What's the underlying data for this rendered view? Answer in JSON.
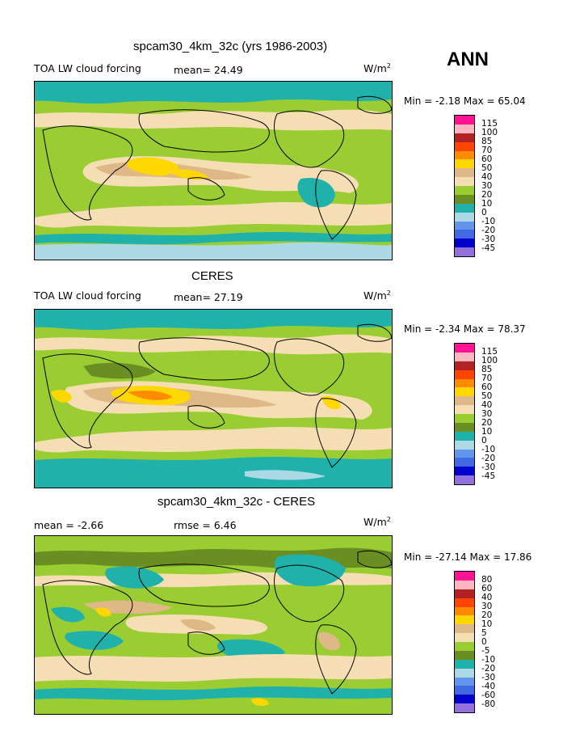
{
  "season": "ANN",
  "panels": [
    {
      "title": "spcam30_4km_32c (yrs 1986-2003)",
      "left_label": "TOA LW cloud forcing",
      "mid_label": "mean=  24.49",
      "units_base": "W/m",
      "units_exp": "2",
      "minmax": "Min =   -2.18  Max =   65.04",
      "legend_labels": [
        "115",
        "100",
        "85",
        "70",
        "60",
        "50",
        "40",
        "30",
        "20",
        "10",
        "0",
        "-10",
        "-20",
        "-30",
        "-45"
      ]
    },
    {
      "title": "CERES",
      "left_label": "TOA LW cloud forcing",
      "mid_label": "mean=  27.19",
      "units_base": "W/m",
      "units_exp": "2",
      "minmax": "Min =   -2.34  Max =   78.37",
      "legend_labels": [
        "115",
        "100",
        "85",
        "70",
        "60",
        "50",
        "40",
        "30",
        "20",
        "10",
        "0",
        "-10",
        "-20",
        "-30",
        "-45"
      ]
    },
    {
      "title": "spcam30_4km_32c - CERES",
      "left_label": "mean =   -2.66",
      "mid_label": "rmse =    6.46",
      "units_base": "W/m",
      "units_exp": "2",
      "minmax": "Min = -27.14  Max =   17.86",
      "legend_labels": [
        "80",
        "60",
        "40",
        "30",
        "20",
        "10",
        "5",
        "0",
        "-5",
        "-10",
        "-20",
        "-30",
        "-40",
        "-60",
        "-80"
      ]
    }
  ],
  "legend_colors": [
    "#ff1493",
    "#ffb6c1",
    "#b22222",
    "#ff4500",
    "#ff8c00",
    "#ffd700",
    "#deb887",
    "#f5deb3",
    "#9acd32",
    "#6b8e23",
    "#20b2aa",
    "#add8e6",
    "#6495ed",
    "#4169e1",
    "#0000cd",
    "#9370db"
  ],
  "map_colors": {
    "ocean": "#9acd32",
    "light": "#f5deb3",
    "tan": "#deb887",
    "yellow": "#ffd700",
    "orange": "#ff8c00",
    "teal": "#20b2aa",
    "dark": "#6b8e23",
    "pale": "#add8e6"
  }
}
